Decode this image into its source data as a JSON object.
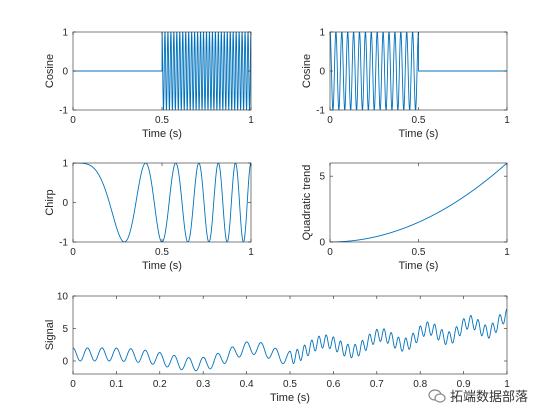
{
  "chart_data": [
    {
      "type": "line",
      "xlabel": "Time (s)",
      "ylabel": "Cosine",
      "xlim": [
        0,
        1
      ],
      "ylim": [
        -1,
        1
      ],
      "xticks": [
        "0",
        "0.5",
        "1"
      ],
      "yticks": [
        "-1",
        "0",
        "1"
      ],
      "grid": false,
      "series": [
        {
          "signal": "cosine",
          "segments": [
            {
              "t_start": 0.0,
              "t_end": 0.5,
              "amplitude": 0,
              "frequency_hz": 0
            },
            {
              "t_start": 0.5,
              "t_end": 1.0,
              "amplitude": 1,
              "frequency_hz": 60
            }
          ],
          "color": "#0072BD"
        }
      ]
    },
    {
      "type": "line",
      "xlabel": "Time (s)",
      "ylabel": "Cosine",
      "xlim": [
        0,
        1
      ],
      "ylim": [
        -1,
        1
      ],
      "xticks": [
        "0",
        "0.5",
        "1"
      ],
      "yticks": [
        "-1",
        "0",
        "1"
      ],
      "grid": false,
      "series": [
        {
          "signal": "cosine",
          "segments": [
            {
              "t_start": 0.0,
              "t_end": 0.5,
              "amplitude": 1,
              "frequency_hz": 30
            },
            {
              "t_start": 0.5,
              "t_end": 1.0,
              "amplitude": 0,
              "frequency_hz": 0
            }
          ],
          "color": "#0072BD"
        }
      ]
    },
    {
      "type": "line",
      "xlabel": "Time (s)",
      "ylabel": "Chirp",
      "xlim": [
        0,
        1
      ],
      "ylim": [
        -1,
        1
      ],
      "xticks": [
        "0",
        "0.5",
        "1"
      ],
      "yticks": [
        "-1",
        "0",
        "1"
      ],
      "grid": false,
      "series": [
        {
          "signal": "linear chirp",
          "start_frequency_hz": 0,
          "end_frequency_hz": 12,
          "color": "#0072BD"
        }
      ]
    },
    {
      "type": "line",
      "xlabel": "Time (s)",
      "ylabel": "Quadratic trend",
      "xlim": [
        0,
        1
      ],
      "ylim": [
        0,
        6
      ],
      "xticks": [
        "0",
        "0.5",
        "1"
      ],
      "yticks": [
        "0",
        "5"
      ],
      "grid": false,
      "series": [
        {
          "signal": "quadratic",
          "y_at_t0": 0,
          "y_at_t0_5": 1.5,
          "y_at_t1": 6,
          "color": "#0072BD"
        }
      ]
    },
    {
      "type": "line",
      "xlabel": "Time (s)",
      "ylabel": "Signal",
      "xlim": [
        0,
        1
      ],
      "ylim": [
        -2,
        10
      ],
      "xticks": [
        "0",
        "0.1",
        "0.2",
        "0.3",
        "0.4",
        "0.5",
        "0.6",
        "0.7",
        "0.8",
        "0.9",
        "1"
      ],
      "yticks": [
        "0",
        "5",
        "10"
      ],
      "grid": false,
      "series": [
        {
          "signal": "sum of the four signals above",
          "color": "#0072BD"
        }
      ]
    }
  ],
  "watermark": {
    "text": "拓端数据部落",
    "icon": "wechat-icon"
  }
}
